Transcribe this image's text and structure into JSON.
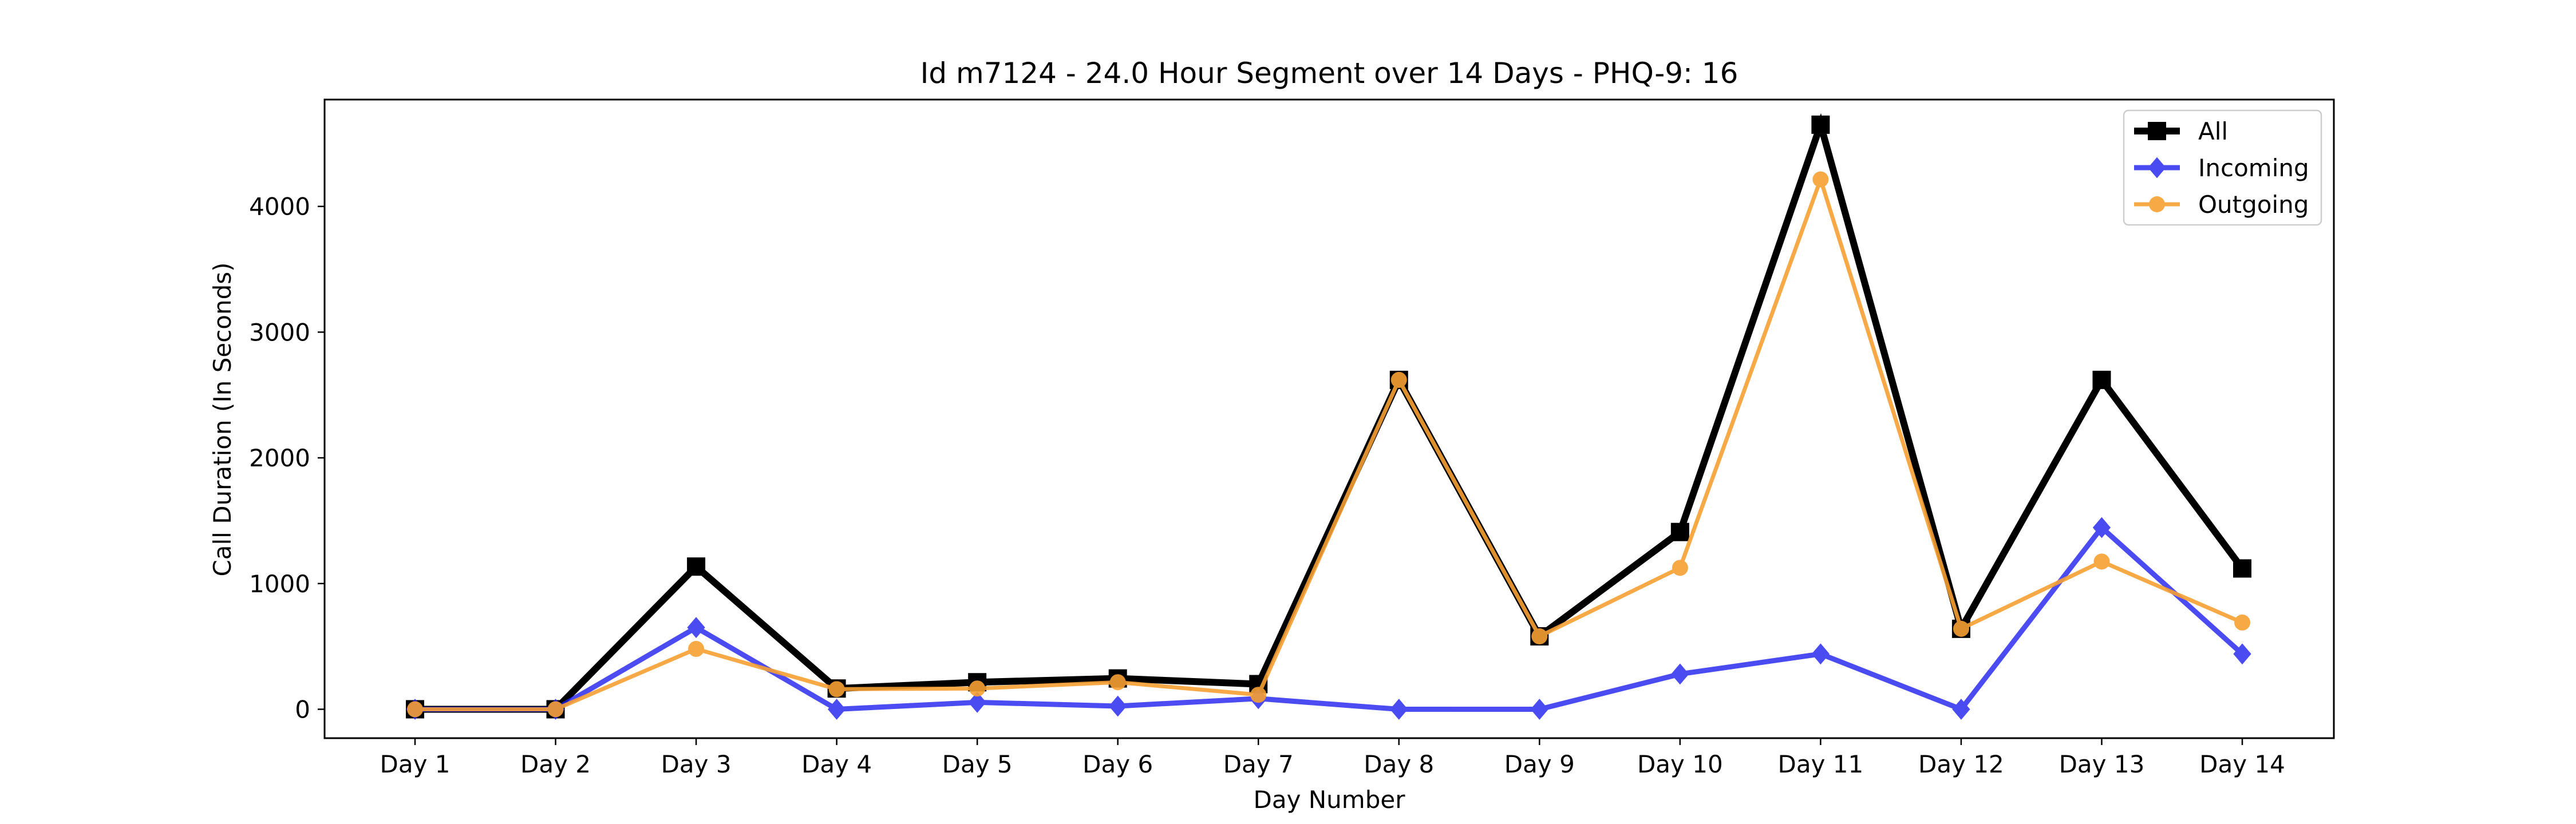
{
  "chart_data": {
    "type": "line",
    "title": "Id m7124 - 24.0 Hour Segment over 14 Days - PHQ-9: 16",
    "xlabel": "Day Number",
    "ylabel": "Call Duration (In Seconds)",
    "categories": [
      "Day 1",
      "Day 2",
      "Day 3",
      "Day 4",
      "Day 5",
      "Day 6",
      "Day 7",
      "Day 8",
      "Day 9",
      "Day 10",
      "Day 11",
      "Day 12",
      "Day 13",
      "Day 14"
    ],
    "ylim": [
      -230,
      4850
    ],
    "yticks": [
      0,
      1000,
      2000,
      3000,
      4000
    ],
    "grid": false,
    "legend_position": "top-right",
    "series": [
      {
        "name": "All",
        "color": "#000000",
        "marker": "square",
        "values": [
          0,
          0,
          1135,
          165,
          215,
          245,
          200,
          2620,
          580,
          1410,
          4650,
          640,
          2620,
          1120
        ]
      },
      {
        "name": "Incoming",
        "color": "#1f1fef",
        "marker": "diamond",
        "values": [
          0,
          0,
          650,
          0,
          55,
          25,
          85,
          0,
          0,
          280,
          440,
          0,
          1445,
          440
        ]
      },
      {
        "name": "Outgoing",
        "color": "#f7a033",
        "marker": "circle",
        "values": [
          0,
          0,
          480,
          160,
          165,
          215,
          115,
          2620,
          580,
          1125,
          4215,
          640,
          1175,
          690
        ]
      }
    ]
  }
}
